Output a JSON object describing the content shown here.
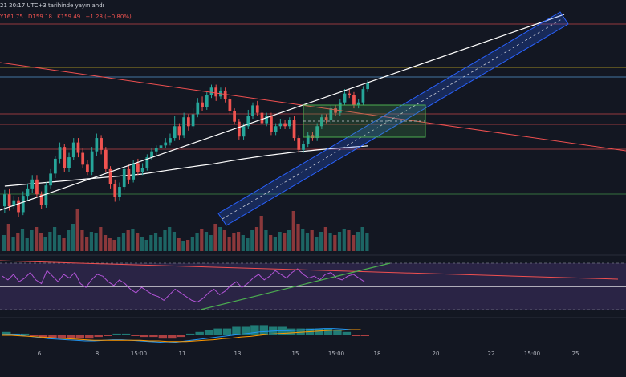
{
  "header": {
    "line1": "21 20:17 UTC+3 tarihinde yayınlandı",
    "ohlc": {
      "high": "Y161.75",
      "low": "D159.18",
      "close": "K159.49",
      "change": "−1.28 (−0.80%)"
    }
  },
  "colors": {
    "background": "#131722",
    "up": "#26a69a",
    "down": "#ef5350",
    "trendline_red": "#f05050",
    "trendline_white": "#ffffff",
    "channel": "#2962ff",
    "box": "#4caf50",
    "rsi_line": "#b154d6",
    "rsi_band": "#7e57c2",
    "macd_line": "#2196f3",
    "signal_line": "#ff9800",
    "hline_yellow": "#f9d423",
    "hline_blue": "#64b5f6",
    "hline_green": "#4caf50"
  },
  "chart_data": {
    "type": "candlestick",
    "x_tick_labels": [
      "6",
      "8",
      "15:00",
      "11",
      "13",
      "15",
      "15:00",
      "18",
      "20",
      "22",
      "15:00",
      "25"
    ],
    "price_candles": [
      [
        104,
        120,
        95,
        126
      ],
      [
        120,
        104,
        98,
        128
      ],
      [
        104,
        112,
        100,
        118
      ],
      [
        112,
        96,
        90,
        116
      ],
      [
        96,
        118,
        92,
        124
      ],
      [
        118,
        128,
        112,
        134
      ],
      [
        128,
        140,
        122,
        146
      ],
      [
        140,
        120,
        116,
        146
      ],
      [
        120,
        106,
        100,
        124
      ],
      [
        106,
        132,
        102,
        136
      ],
      [
        132,
        148,
        128,
        154
      ],
      [
        148,
        168,
        142,
        172
      ],
      [
        168,
        184,
        162,
        190
      ],
      [
        184,
        156,
        150,
        188
      ],
      [
        156,
        170,
        150,
        176
      ],
      [
        170,
        190,
        166,
        196
      ],
      [
        190,
        176,
        170,
        196
      ],
      [
        176,
        160,
        156,
        182
      ],
      [
        160,
        150,
        146,
        166
      ],
      [
        150,
        178,
        146,
        184
      ],
      [
        178,
        196,
        172,
        202
      ],
      [
        196,
        180,
        174,
        200
      ],
      [
        180,
        154,
        150,
        184
      ],
      [
        154,
        134,
        128,
        158
      ],
      [
        134,
        116,
        110,
        140
      ],
      [
        116,
        130,
        112,
        136
      ],
      [
        130,
        154,
        126,
        158
      ],
      [
        154,
        140,
        134,
        160
      ],
      [
        140,
        162,
        136,
        166
      ],
      [
        162,
        150,
        146,
        168
      ],
      [
        150,
        156,
        146,
        162
      ],
      [
        156,
        170,
        152,
        174
      ],
      [
        170,
        178,
        166,
        182
      ],
      [
        178,
        182,
        172,
        186
      ],
      [
        182,
        186,
        178,
        190
      ],
      [
        186,
        190,
        182,
        196
      ],
      [
        190,
        196,
        186,
        202
      ],
      [
        196,
        212,
        192,
        226
      ],
      [
        212,
        200,
        194,
        216
      ],
      [
        200,
        224,
        196,
        230
      ],
      [
        224,
        212,
        206,
        228
      ],
      [
        212,
        228,
        208,
        236
      ],
      [
        228,
        244,
        224,
        250
      ],
      [
        244,
        238,
        232,
        252
      ],
      [
        238,
        254,
        234,
        258
      ],
      [
        254,
        264,
        250,
        268
      ],
      [
        264,
        252,
        246,
        268
      ],
      [
        252,
        260,
        248,
        264
      ],
      [
        260,
        248,
        244,
        264
      ],
      [
        248,
        232,
        228,
        252
      ],
      [
        232,
        218,
        214,
        236
      ],
      [
        218,
        198,
        194,
        222
      ],
      [
        198,
        212,
        194,
        216
      ],
      [
        212,
        226,
        208,
        234
      ],
      [
        226,
        240,
        222,
        244
      ],
      [
        240,
        230,
        226,
        246
      ],
      [
        230,
        216,
        212,
        234
      ],
      [
        216,
        226,
        212,
        230
      ],
      [
        226,
        204,
        200,
        230
      ],
      [
        204,
        212,
        200,
        216
      ],
      [
        212,
        216,
        208,
        222
      ],
      [
        216,
        212,
        208,
        220
      ],
      [
        212,
        220,
        208,
        224
      ],
      [
        220,
        196,
        192,
        226
      ],
      [
        196,
        180,
        176,
        200
      ],
      [
        180,
        188,
        176,
        192
      ],
      [
        188,
        200,
        184,
        204
      ],
      [
        200,
        196,
        192,
        204
      ],
      [
        196,
        212,
        192,
        216
      ],
      [
        212,
        224,
        208,
        228
      ],
      [
        224,
        220,
        216,
        228
      ],
      [
        220,
        236,
        216,
        240
      ],
      [
        236,
        230,
        226,
        240
      ],
      [
        230,
        244,
        226,
        248
      ],
      [
        244,
        256,
        240,
        262
      ],
      [
        256,
        254,
        250,
        262
      ],
      [
        254,
        240,
        236,
        258
      ],
      [
        240,
        244,
        236,
        248
      ],
      [
        244,
        262,
        240,
        266
      ],
      [
        262,
        270,
        258,
        274
      ]
    ],
    "volumes": [
      20,
      34,
      18,
      22,
      28,
      16,
      26,
      30,
      22,
      18,
      24,
      30,
      20,
      16,
      26,
      34,
      52,
      26,
      18,
      24,
      22,
      30,
      20,
      16,
      14,
      18,
      22,
      26,
      28,
      22,
      18,
      14,
      20,
      22,
      18,
      26,
      30,
      24,
      16,
      12,
      14,
      18,
      22,
      28,
      24,
      20,
      34,
      30,
      26,
      18,
      22,
      24,
      20,
      16,
      26,
      30,
      44,
      26,
      20,
      18,
      24,
      22,
      26,
      50,
      34,
      28,
      22,
      26,
      18,
      24,
      30,
      22,
      20,
      24,
      28,
      26,
      20,
      24,
      30,
      22
    ],
    "rsi": [
      56,
      52,
      58,
      50,
      54,
      60,
      52,
      48,
      62,
      56,
      50,
      58,
      54,
      60,
      48,
      44,
      52,
      58,
      56,
      50,
      46,
      52,
      48,
      42,
      38,
      44,
      40,
      36,
      34,
      30,
      36,
      42,
      38,
      34,
      30,
      28,
      32,
      38,
      42,
      36,
      40,
      46,
      50,
      44,
      48,
      54,
      58,
      52,
      56,
      62,
      58,
      54,
      60,
      64,
      58,
      54,
      56,
      52,
      58,
      60,
      54,
      52,
      56,
      58,
      54,
      50
    ],
    "macd": [
      0.2,
      0.1,
      0.0,
      -0.2,
      -0.4,
      -0.6,
      -0.7,
      -0.8,
      -0.9,
      -1.0,
      -1.0,
      -0.9,
      -0.8,
      -0.8,
      -0.9,
      -1.0,
      -1.1,
      -1.2,
      -1.3,
      -1.2,
      -1.0,
      -0.8,
      -0.6,
      -0.4,
      -0.2,
      0.0,
      0.2,
      0.4,
      0.6,
      0.7,
      0.8,
      0.8,
      0.9,
      1.0,
      1.1,
      1.2,
      1.2,
      1.1,
      1.0,
      1.0
    ],
    "signal": [
      0.0,
      0.0,
      -0.1,
      -0.2,
      -0.3,
      -0.4,
      -0.5,
      -0.6,
      -0.7,
      -0.8,
      -0.9,
      -0.9,
      -0.9,
      -0.9,
      -0.9,
      -0.9,
      -1.0,
      -1.0,
      -1.1,
      -1.1,
      -1.1,
      -1.0,
      -0.9,
      -0.8,
      -0.6,
      -0.5,
      -0.3,
      -0.2,
      0.0,
      0.2,
      0.3,
      0.4,
      0.5,
      0.6,
      0.7,
      0.8,
      0.9,
      0.9,
      1.0,
      1.0
    ]
  }
}
